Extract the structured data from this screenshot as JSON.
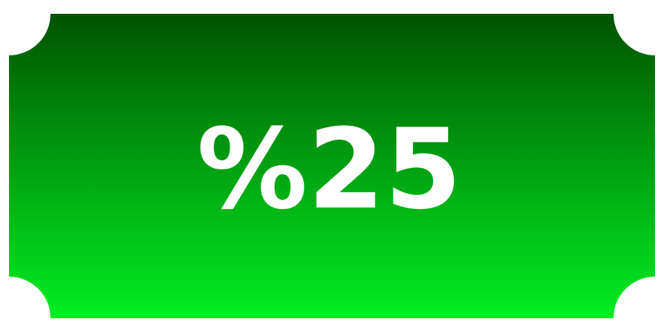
{
  "coupon": {
    "discount_label": "%25",
    "colors": {
      "gradient_top": "#005200",
      "gradient_bottom": "#00ee22",
      "text": "#ffffff",
      "background": "#ffffff"
    }
  }
}
